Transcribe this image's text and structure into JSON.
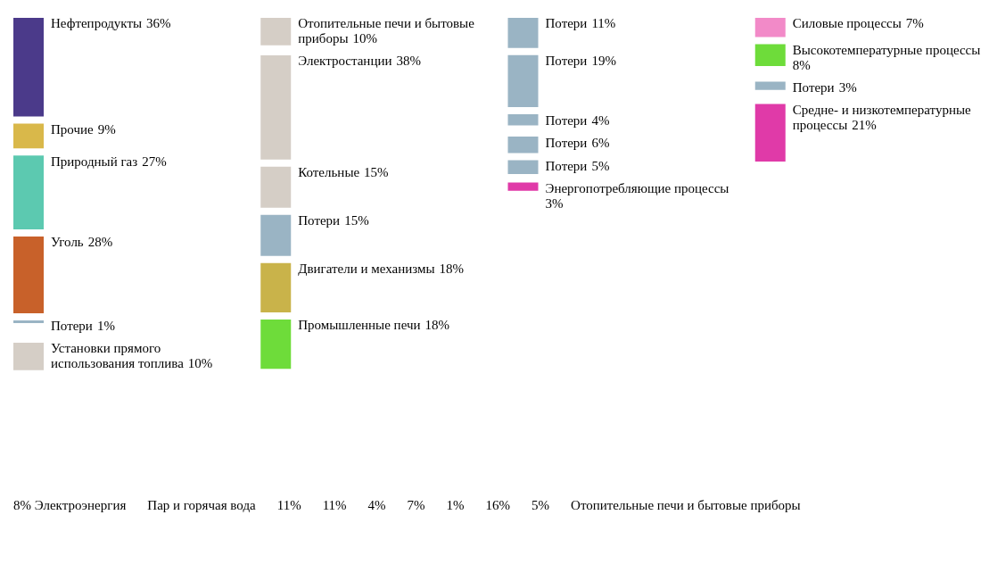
{
  "chart_data": {
    "type": "other",
    "categories": [
      "Нефтепродукты",
      "Прочие",
      "Природный газ",
      "Уголь",
      "Потери",
      "Установки прямого использования топлива",
      "Отопительные печи и бытовые приборы",
      "Электростанции",
      "Котельные",
      "Потери",
      "Двигатели и механизмы",
      "Промышленные печи",
      "Потери",
      "Потери",
      "Потери",
      "Потери",
      "Потери",
      "Энергопотребляющие процессы",
      "Силовые процессы",
      "Высокотемпературные процессы",
      "Потери",
      "Средне- и низкотемпературные процессы"
    ],
    "values": [
      36,
      9,
      27,
      28,
      1,
      10,
      10,
      38,
      15,
      15,
      18,
      18,
      11,
      19,
      4,
      6,
      5,
      3,
      7,
      8,
      3,
      21
    ],
    "value_labels": [
      "36%",
      "9%",
      "27%",
      "28%",
      "1%",
      "10%",
      "10%",
      "38%",
      "15%",
      "15%",
      "18%",
      "18%",
      "11%",
      "19%",
      "4%",
      "6%",
      "5%",
      "3%",
      "7%",
      "8%",
      "3%",
      "21%"
    ],
    "colors": [
      "#4b3a8a",
      "#d9b84a",
      "#5cc9b0",
      "#c8612a",
      "#9ab4c4",
      "#d5cec6",
      "#d5cec6",
      "#d5cec6",
      "#d5cec6",
      "#9ab4c4",
      "#c9b34a",
      "#6edc3a",
      "#9ab4c4",
      "#9ab4c4",
      "#9ab4c4",
      "#9ab4c4",
      "#9ab4c4",
      "#e03aa8",
      "#f28ac8",
      "#6edc3a",
      "#9ab4c4",
      "#e03aa8"
    ],
    "annotations": [
      "8% Электроэнергия",
      "Пар и горячая вода",
      "11%",
      "11%",
      "4%",
      "7%",
      "1%",
      "16%",
      "5%",
      "Отопительные печи и бытовые приборы"
    ]
  }
}
